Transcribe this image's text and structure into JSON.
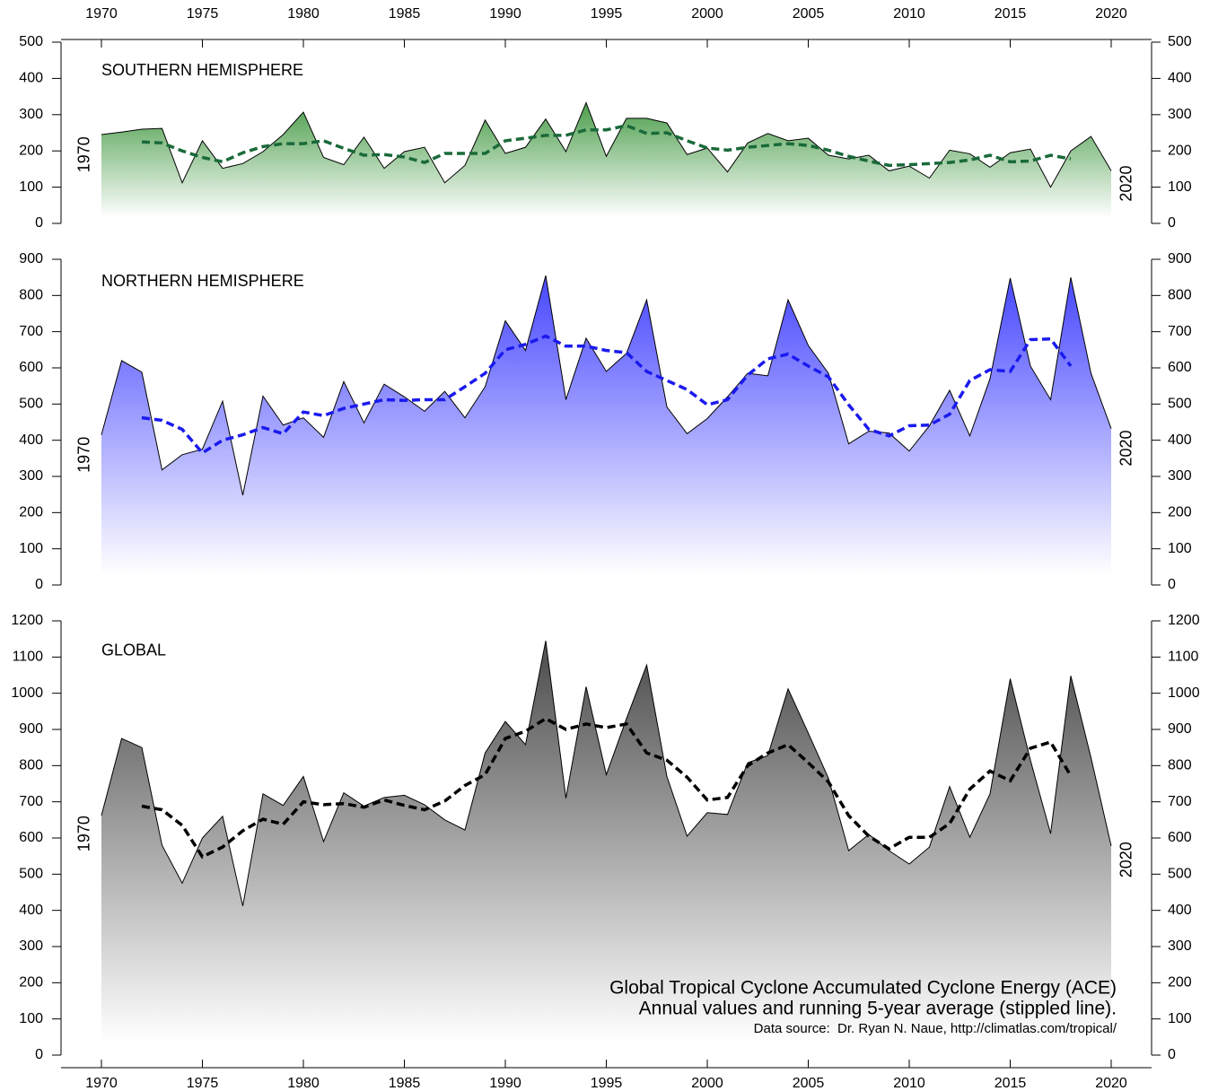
{
  "chart_data": [
    {
      "type": "area",
      "title": "SOUTHERN HEMISPHERE",
      "annotations": [
        "1970",
        "2020"
      ],
      "x": [
        1970,
        1971,
        1972,
        1973,
        1974,
        1975,
        1976,
        1977,
        1978,
        1979,
        1980,
        1981,
        1982,
        1983,
        1984,
        1985,
        1986,
        1987,
        1988,
        1989,
        1990,
        1991,
        1992,
        1993,
        1994,
        1995,
        1996,
        1997,
        1998,
        1999,
        2000,
        2001,
        2002,
        2003,
        2004,
        2005,
        2006,
        2007,
        2008,
        2009,
        2010,
        2011,
        2012,
        2013,
        2014,
        2015,
        2016,
        2017,
        2018,
        2019,
        2020
      ],
      "xlim": [
        1968,
        2022
      ],
      "xticks": [
        1970,
        1975,
        1980,
        1985,
        1990,
        1995,
        2000,
        2005,
        2010,
        2015,
        2020
      ],
      "ylim": [
        0,
        500
      ],
      "yticks": [
        0,
        100,
        200,
        300,
        400,
        500
      ],
      "series": [
        {
          "color": "#0a7a0a",
          "values": [
            245,
            252,
            260,
            262,
            112,
            228,
            152,
            165,
            198,
            245,
            307,
            182,
            162,
            238,
            152,
            198,
            210,
            112,
            160,
            285,
            193,
            210,
            288,
            198,
            333,
            185,
            290,
            290,
            277,
            190,
            208,
            142,
            222,
            248,
            228,
            235,
            188,
            178,
            188,
            145,
            158,
            125,
            202,
            192,
            155,
            195,
            205,
            100,
            200,
            240,
            145
          ]
        },
        {
          "color": "#1a6a3a",
          "style": "dashed",
          "values": [
            null,
            null,
            225,
            222,
            200,
            182,
            170,
            195,
            212,
            220,
            220,
            228,
            207,
            188,
            190,
            183,
            168,
            193,
            193,
            193,
            228,
            235,
            243,
            243,
            258,
            258,
            270,
            248,
            250,
            228,
            208,
            202,
            210,
            215,
            220,
            215,
            202,
            185,
            172,
            160,
            162,
            165,
            168,
            175,
            188,
            170,
            172,
            188,
            178,
            null,
            null
          ]
        }
      ]
    },
    {
      "type": "area",
      "title": "NORTHERN HEMISPHERE",
      "annotations": [
        "1970",
        "2020"
      ],
      "x": [
        1970,
        1971,
        1972,
        1973,
        1974,
        1975,
        1976,
        1977,
        1978,
        1979,
        1980,
        1981,
        1982,
        1983,
        1984,
        1985,
        1986,
        1987,
        1988,
        1989,
        1990,
        1991,
        1992,
        1993,
        1994,
        1995,
        1996,
        1997,
        1998,
        1999,
        2000,
        2001,
        2002,
        2003,
        2004,
        2005,
        2006,
        2007,
        2008,
        2009,
        2010,
        2011,
        2012,
        2013,
        2014,
        2015,
        2016,
        2017,
        2018,
        2019,
        2020
      ],
      "xlim": [
        1968,
        2022
      ],
      "ylim": [
        0,
        900
      ],
      "yticks": [
        0,
        100,
        200,
        300,
        400,
        500,
        600,
        700,
        800,
        900
      ],
      "series": [
        {
          "color": "#5050ff",
          "values": [
            415,
            620,
            588,
            318,
            360,
            375,
            508,
            248,
            522,
            442,
            462,
            408,
            562,
            448,
            555,
            520,
            480,
            535,
            462,
            548,
            730,
            648,
            855,
            512,
            682,
            590,
            640,
            788,
            492,
            418,
            460,
            520,
            585,
            578,
            788,
            662,
            585,
            390,
            425,
            420,
            370,
            440,
            538,
            412,
            570,
            848,
            605,
            512,
            850,
            585,
            432
          ]
        },
        {
          "color": "#1a1aee",
          "style": "dashed",
          "values": [
            null,
            null,
            462,
            455,
            430,
            365,
            400,
            415,
            435,
            418,
            478,
            468,
            488,
            500,
            512,
            510,
            512,
            512,
            548,
            585,
            650,
            665,
            688,
            660,
            660,
            648,
            642,
            590,
            565,
            540,
            498,
            512,
            580,
            625,
            638,
            605,
            575,
            498,
            430,
            412,
            440,
            442,
            472,
            565,
            595,
            590,
            678,
            680,
            605,
            null,
            null
          ]
        }
      ]
    },
    {
      "type": "area",
      "title": "GLOBAL",
      "annotations": [
        "1970",
        "2020"
      ],
      "notes": [
        "Global Tropical Cyclone Accumulated Cyclone Energy (ACE)",
        "Annual values and running 5-year average (stippled line).",
        "Data source:  Dr. Ryan N. Naue, http://climatlas.com/tropical/"
      ],
      "x": [
        1970,
        1971,
        1972,
        1973,
        1974,
        1975,
        1976,
        1977,
        1978,
        1979,
        1980,
        1981,
        1982,
        1983,
        1984,
        1985,
        1986,
        1987,
        1988,
        1989,
        1990,
        1991,
        1992,
        1993,
        1994,
        1995,
        1996,
        1997,
        1998,
        1999,
        2000,
        2001,
        2002,
        2003,
        2004,
        2005,
        2006,
        2007,
        2008,
        2009,
        2010,
        2011,
        2012,
        2013,
        2014,
        2015,
        2016,
        2017,
        2018,
        2019,
        2020
      ],
      "xlim": [
        1968,
        2022
      ],
      "xticks": [
        1970,
        1975,
        1980,
        1985,
        1990,
        1995,
        2000,
        2005,
        2010,
        2015,
        2020
      ],
      "ylim": [
        0,
        1200
      ],
      "yticks": [
        0,
        100,
        200,
        300,
        400,
        500,
        600,
        700,
        800,
        900,
        1000,
        1100,
        1200
      ],
      "series": [
        {
          "color": "#555555",
          "values": [
            662,
            875,
            850,
            580,
            475,
            600,
            660,
            412,
            722,
            690,
            770,
            590,
            725,
            688,
            712,
            718,
            692,
            650,
            622,
            835,
            922,
            858,
            1145,
            710,
            1018,
            775,
            930,
            1078,
            770,
            605,
            670,
            665,
            808,
            828,
            1012,
            890,
            765,
            565,
            610,
            565,
            528,
            575,
            742,
            602,
            722,
            1040,
            815,
            612,
            1048,
            822,
            578
          ]
        },
        {
          "color": "#000000",
          "style": "dashed",
          "values": [
            null,
            null,
            688,
            678,
            635,
            548,
            575,
            620,
            652,
            638,
            700,
            692,
            695,
            685,
            705,
            690,
            678,
            702,
            745,
            775,
            875,
            895,
            930,
            900,
            915,
            905,
            915,
            835,
            815,
            768,
            705,
            712,
            800,
            835,
            858,
            808,
            755,
            662,
            605,
            570,
            602,
            602,
            640,
            735,
            785,
            758,
            848,
            865,
            772,
            null,
            null
          ]
        }
      ]
    }
  ]
}
